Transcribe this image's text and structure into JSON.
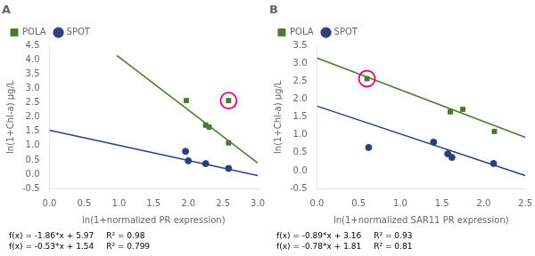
{
  "chart_data": [
    {
      "type": "scatter",
      "title": "A",
      "xlabel": "ln(1+normalized PR expression)",
      "ylabel": "ln(1+Chl-a) μg/L",
      "xlim": [
        0,
        3
      ],
      "ylim": [
        -0.5,
        4.5
      ],
      "xticks": [
        {
          "value": 0,
          "label": "0.0"
        },
        0.5,
        {
          "value": 1,
          "label": "1.0"
        },
        1.5,
        {
          "value": 2,
          "label": "2.0"
        },
        2.5,
        {
          "value": 3,
          "label": "3.0"
        }
      ],
      "yticks": [
        -0.5,
        {
          "value": 0,
          "label": "0.0"
        },
        0.5,
        {
          "value": 1,
          "label": "1.0"
        },
        1.5,
        {
          "value": 2,
          "label": "2.0"
        },
        2.5,
        {
          "value": 3,
          "label": "3.0"
        },
        3.5,
        {
          "value": 4,
          "label": "4.0"
        },
        4.5
      ],
      "grid": false,
      "legend": "top left",
      "series": [
        {
          "name": "POLA",
          "color": "#4a7a2e",
          "marker": "square",
          "x": [
            1.97,
            2.25,
            2.3,
            2.58,
            2.58
          ],
          "values": [
            2.58,
            1.72,
            1.65,
            1.1,
            2.58
          ]
        },
        {
          "name": "SPOT",
          "color": "#2e3f7f",
          "marker": "circle",
          "x": [
            1.96,
            2.0,
            2.25,
            2.58
          ],
          "values": [
            0.8,
            0.47,
            0.37,
            0.2
          ]
        },
        {
          "type": "line",
          "color": "#4a7a2e",
          "x": [
            0.97,
            3.0
          ],
          "values": [
            4.1658,
            0.39
          ]
        },
        {
          "type": "line",
          "color": "#2e3f7f",
          "x": [
            0.0,
            3.0
          ],
          "values": [
            1.54,
            -0.05
          ]
        },
        {
          "type": "scatter",
          "marker": "ring",
          "color": "#e8007a",
          "x": [
            2.58
          ],
          "values": [
            2.58
          ]
        }
      ],
      "annotations": [
        "f(x) = -1.86*x + 5.97",
        "R² = 0.98",
        "f(x) = -0.53*x + 1.54",
        "R² = 0.799"
      ]
    },
    {
      "type": "scatter",
      "title": "B",
      "xlabel": "ln(1+normalized SAR11 PR expression)",
      "ylabel": "ln(1+Chl-a) μg/L",
      "xlim": [
        0,
        2.5
      ],
      "ylim": [
        -0.5,
        3.5
      ],
      "xticks": [
        {
          "value": 0,
          "label": "0.0"
        },
        0.5,
        {
          "value": 1,
          "label": "1.0"
        },
        1.5,
        {
          "value": 2,
          "label": "2.0"
        },
        2.5
      ],
      "yticks": [
        -0.5,
        {
          "value": 0,
          "label": "0.0"
        },
        0.5,
        {
          "value": 1,
          "label": "1.0"
        },
        1.5,
        {
          "value": 2,
          "label": "2.0"
        },
        2.5,
        {
          "value": 3,
          "label": "3.0"
        },
        3.5
      ],
      "grid": false,
      "legend": "top left",
      "series": [
        {
          "name": "POLA",
          "color": "#4a7a2e",
          "marker": "square",
          "x": [
            0.6,
            1.6,
            1.75,
            2.13
          ],
          "values": [
            2.58,
            1.65,
            1.72,
            1.1
          ]
        },
        {
          "name": "SPOT",
          "color": "#2e3f7f",
          "marker": "circle",
          "x": [
            0.62,
            1.4,
            1.57,
            1.62,
            2.12
          ],
          "values": [
            0.65,
            0.8,
            0.47,
            0.37,
            0.2
          ]
        },
        {
          "type": "line",
          "color": "#4a7a2e",
          "x": [
            0.0,
            2.5
          ],
          "values": [
            3.16,
            0.935
          ]
        },
        {
          "type": "line",
          "color": "#2e3f7f",
          "x": [
            0.0,
            2.5
          ],
          "values": [
            1.81,
            -0.14
          ]
        },
        {
          "type": "scatter",
          "marker": "ring",
          "color": "#e8007a",
          "x": [
            0.6
          ],
          "values": [
            2.58
          ]
        }
      ],
      "annotations": [
        "f(x) = -0.89*x + 3.16",
        "R² = 0.93",
        "f(x) = -0.78*x + 1.81",
        "R² = 0.81"
      ]
    }
  ]
}
